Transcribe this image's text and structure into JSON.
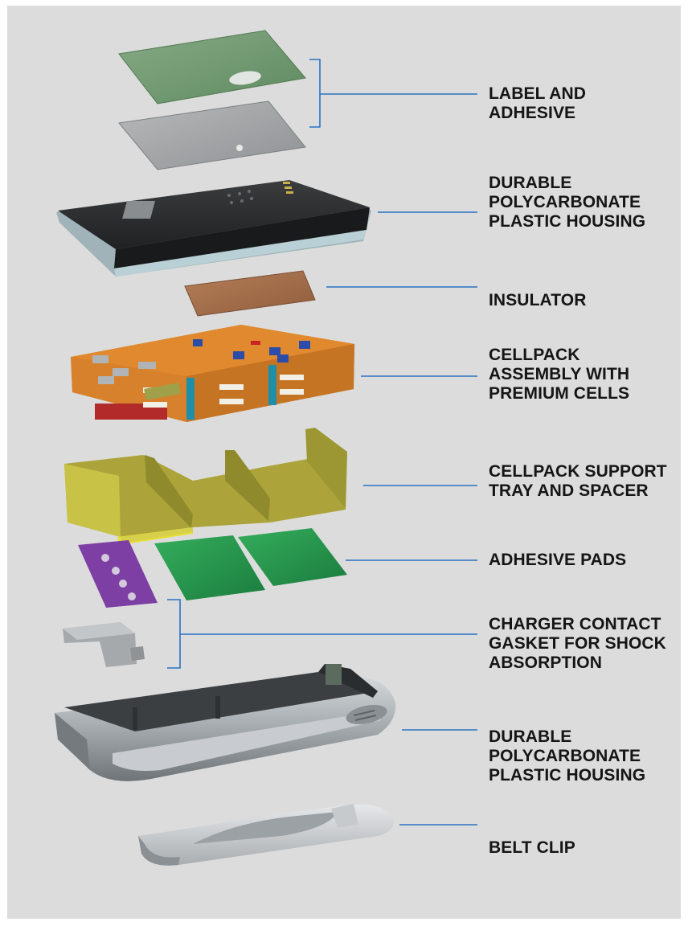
{
  "colors": {
    "background": "#dcdcdc",
    "leader_line": "#2a72c2",
    "label_text": "#151515",
    "label_green": "#6f9a6f",
    "housing_dark": "#2b2d2e",
    "insulator": "#a6714e",
    "cellpack_orange": "#e0892e",
    "tray_olive": "#aca43a",
    "pads_green": "#2a9a4f",
    "gasket_purple": "#7d3fa3"
  },
  "callouts": [
    {
      "id": "label-and-adhesive",
      "text": "LABEL AND\nADHESIVE"
    },
    {
      "id": "top-housing",
      "text": "DURABLE\nPOLYCARBONATE\nPLASTIC HOUSING"
    },
    {
      "id": "insulator",
      "text": "INSULATOR"
    },
    {
      "id": "cellpack-assembly",
      "text": "CELLPACK\nASSEMBLY WITH\nPREMIUM CELLS"
    },
    {
      "id": "support-tray",
      "text": "CELLPACK SUPPORT\nTRAY AND SPACER"
    },
    {
      "id": "adhesive-pads",
      "text": "ADHESIVE PADS"
    },
    {
      "id": "charger-gasket",
      "text": "CHARGER CONTACT\nGASKET FOR SHOCK\nABSORPTION"
    },
    {
      "id": "bottom-housing",
      "text": "DURABLE\nPOLYCARBONATE\nPLASTIC HOUSING"
    },
    {
      "id": "belt-clip",
      "text": "BELT CLIP"
    }
  ]
}
